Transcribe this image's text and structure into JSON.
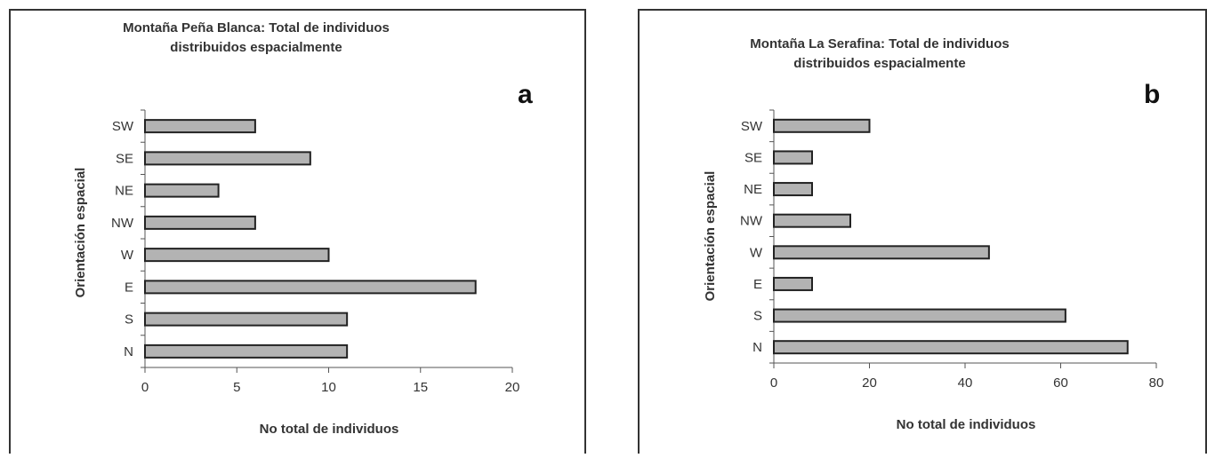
{
  "chart_data": [
    {
      "type": "bar",
      "orientation": "horizontal",
      "panel_label": "a",
      "title_lines": [
        "Montaña Peña Blanca: Total de individuos",
        "distribuidos espacialmente"
      ],
      "xlabel": "No total de individuos",
      "ylabel": "Orientación espacial",
      "categories": [
        "N",
        "S",
        "E",
        "W",
        "NW",
        "NE",
        "SE",
        "SW"
      ],
      "values": [
        11,
        11,
        18,
        10,
        6,
        4,
        9,
        6
      ],
      "xlim": [
        0,
        20
      ],
      "xticks": [
        0,
        5,
        10,
        15,
        20
      ],
      "grid": false,
      "bar_color": "#b3b3b3"
    },
    {
      "type": "bar",
      "orientation": "horizontal",
      "panel_label": "b",
      "title_lines": [
        "Montaña La Serafina: Total de individuos",
        "distribuidos espacialmente"
      ],
      "xlabel": "No total de individuos",
      "ylabel": "Orientación espacial",
      "categories": [
        "N",
        "S",
        "E",
        "W",
        "NW",
        "NE",
        "SE",
        "SW"
      ],
      "values": [
        74,
        61,
        8,
        45,
        16,
        8,
        8,
        20
      ],
      "xlim": [
        0,
        80
      ],
      "xticks": [
        0,
        20,
        40,
        60,
        80
      ],
      "grid": false,
      "bar_color": "#b3b3b3"
    }
  ]
}
